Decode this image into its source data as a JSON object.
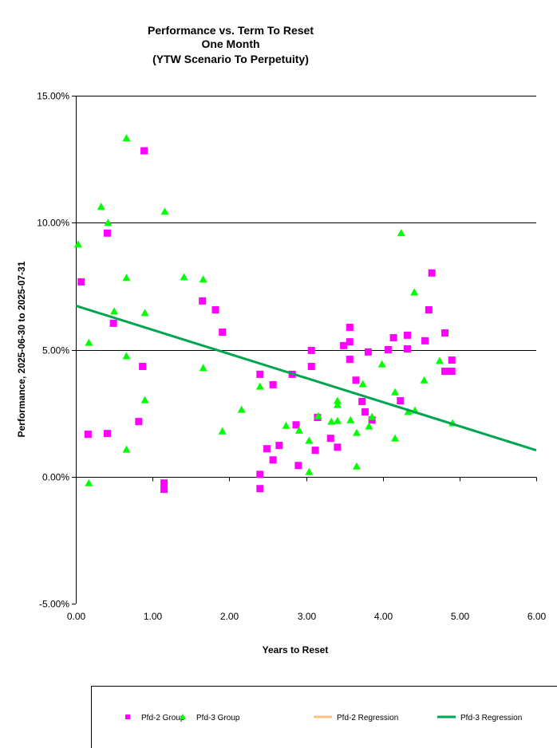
{
  "chart_data": {
    "type": "scatter",
    "title": [
      "Performance vs. Term To Reset",
      "One Month",
      "(YTW Scenario To Perpetuity)"
    ],
    "xlabel": "Years to Reset",
    "ylabel": "Performance, 2025-06-30  to 2025-07-31",
    "xlim": [
      0,
      6
    ],
    "ylim": [
      -5,
      15
    ],
    "xticks": [
      0,
      1,
      2,
      3,
      4,
      5,
      6
    ],
    "xtick_labels": [
      "0.00",
      "1.00",
      "2.00",
      "3.00",
      "4.00",
      "5.00",
      "6.00"
    ],
    "yticks": [
      -5,
      0,
      5,
      10,
      15
    ],
    "ytick_labels": [
      "-5.00%",
      "0.00%",
      "5.00%",
      "10.00%",
      "15.00%"
    ],
    "grid": "horizontal",
    "legend_position": "bottom",
    "series": [
      {
        "name": "Pfd-2 Group",
        "kind": "points",
        "marker": "square",
        "color": "#ff00ff",
        "points": [
          [
            0.07,
            7.67
          ],
          [
            0.16,
            1.67
          ],
          [
            0.41,
            9.59
          ],
          [
            0.41,
            1.7
          ],
          [
            0.49,
            6.04
          ],
          [
            0.82,
            2.17
          ],
          [
            0.87,
            4.34
          ],
          [
            0.89,
            12.83
          ],
          [
            1.15,
            -0.25
          ],
          [
            1.15,
            -0.5
          ],
          [
            1.65,
            6.92
          ],
          [
            1.82,
            6.57
          ],
          [
            1.91,
            5.69
          ],
          [
            2.4,
            4.03
          ],
          [
            2.4,
            -0.47
          ],
          [
            2.4,
            0.09
          ],
          [
            2.49,
            1.1
          ],
          [
            2.57,
            0.66
          ],
          [
            2.57,
            3.62
          ],
          [
            2.65,
            1.23
          ],
          [
            2.82,
            4.03
          ],
          [
            2.87,
            2.04
          ],
          [
            2.9,
            0.44
          ],
          [
            3.07,
            4.97
          ],
          [
            3.07,
            4.34
          ],
          [
            3.12,
            1.04
          ],
          [
            3.15,
            2.33
          ],
          [
            3.32,
            1.51
          ],
          [
            3.41,
            1.16
          ],
          [
            3.49,
            5.16
          ],
          [
            3.57,
            5.88
          ],
          [
            3.57,
            5.31
          ],
          [
            3.57,
            4.62
          ],
          [
            3.65,
            3.8
          ],
          [
            3.73,
            2.96
          ],
          [
            3.77,
            2.55
          ],
          [
            3.81,
            4.91
          ],
          [
            3.86,
            2.23
          ],
          [
            4.07,
            5.0
          ],
          [
            4.14,
            5.47
          ],
          [
            4.23,
            2.99
          ],
          [
            4.32,
            5.03
          ],
          [
            4.32,
            5.57
          ],
          [
            4.55,
            5.35
          ],
          [
            4.6,
            6.57
          ],
          [
            4.64,
            8.02
          ],
          [
            4.81,
            5.66
          ],
          [
            4.81,
            4.15
          ],
          [
            4.9,
            4.15
          ],
          [
            4.9,
            4.59
          ]
        ]
      },
      {
        "name": "Pfd-3 Group",
        "kind": "points",
        "marker": "triangle",
        "color": "#00ff00",
        "points": [
          [
            0.03,
            9.15
          ],
          [
            0.17,
            5.28
          ],
          [
            0.17,
            -0.25
          ],
          [
            0.33,
            10.63
          ],
          [
            0.42,
            10.0
          ],
          [
            0.5,
            6.51
          ],
          [
            0.66,
            13.33
          ],
          [
            0.66,
            7.83
          ],
          [
            0.66,
            4.75
          ],
          [
            0.66,
            1.07
          ],
          [
            0.9,
            6.45
          ],
          [
            0.9,
            3.02
          ],
          [
            1.16,
            10.44
          ],
          [
            1.41,
            7.86
          ],
          [
            1.66,
            7.77
          ],
          [
            1.66,
            4.28
          ],
          [
            1.91,
            1.79
          ],
          [
            2.16,
            2.64
          ],
          [
            2.4,
            3.55
          ],
          [
            2.74,
            2.01
          ],
          [
            2.91,
            1.82
          ],
          [
            3.04,
            1.42
          ],
          [
            3.04,
            0.19
          ],
          [
            3.16,
            2.39
          ],
          [
            3.33,
            2.17
          ],
          [
            3.41,
            2.99
          ],
          [
            3.41,
            2.83
          ],
          [
            3.41,
            2.2
          ],
          [
            3.58,
            2.23
          ],
          [
            3.66,
            1.73
          ],
          [
            3.66,
            0.41
          ],
          [
            3.74,
            3.65
          ],
          [
            3.82,
            1.98
          ],
          [
            3.86,
            2.36
          ],
          [
            3.99,
            4.43
          ],
          [
            4.16,
            3.33
          ],
          [
            4.16,
            1.51
          ],
          [
            4.24,
            9.59
          ],
          [
            4.33,
            2.55
          ],
          [
            4.41,
            7.26
          ],
          [
            4.42,
            2.61
          ],
          [
            4.54,
            3.8
          ],
          [
            4.74,
            4.56
          ],
          [
            4.91,
            2.11
          ]
        ]
      },
      {
        "name": "Pfd-2 Regression",
        "kind": "line",
        "color": "#ffc080",
        "points": []
      },
      {
        "name": "Pfd-3 Regression",
        "kind": "line",
        "color": "#00a550",
        "points": [
          [
            0,
            6.73
          ],
          [
            6,
            1.04
          ]
        ]
      }
    ]
  }
}
